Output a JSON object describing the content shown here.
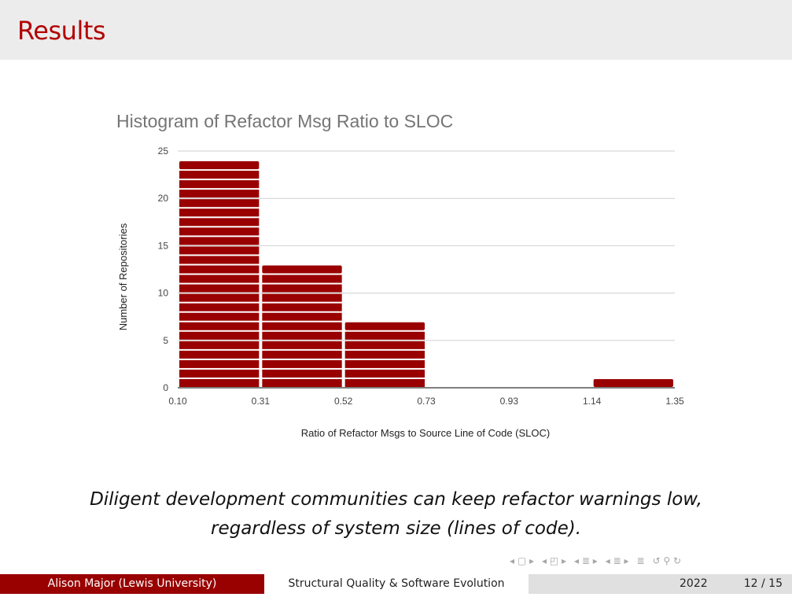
{
  "slide": {
    "title": "Results",
    "caption_line1": "Diligent development communities can keep refactor warnings low,",
    "caption_line2": "regardless of system size (lines of code)."
  },
  "footer": {
    "author": "Alison Major  (Lewis University)",
    "talk_title": "Structural Quality & Software Evolution",
    "year": "2022",
    "page": "12 / 15"
  },
  "nav": {
    "icons": [
      "nav-first-icon",
      "nav-frame-icon",
      "nav-section-icon",
      "nav-subsection-icon",
      "nav-align-icon",
      "nav-search-icon"
    ]
  },
  "colors": {
    "accent": "#b30000",
    "bar": "#990000",
    "footer_left": "#990000",
    "footer_right": "#e0e0e0"
  },
  "chart_data": {
    "type": "bar",
    "title": "Histogram of Refactor Msg Ratio to SLOC",
    "xlabel": "Ratio of Refactor Msgs to Source Line of Code (SLOC)",
    "ylabel": "Number of Repositories",
    "x_ticks": [
      "0.10",
      "0.31",
      "0.52",
      "0.73",
      "0.93",
      "1.14",
      "1.35"
    ],
    "y_ticks": [
      0,
      5,
      10,
      15,
      20,
      25
    ],
    "ylim": [
      0,
      25
    ],
    "bins": [
      {
        "from": "0.10",
        "to": "0.31",
        "value": 24
      },
      {
        "from": "0.31",
        "to": "0.52",
        "value": 13
      },
      {
        "from": "0.52",
        "to": "0.73",
        "value": 7
      },
      {
        "from": "0.73",
        "to": "0.93",
        "value": 0
      },
      {
        "from": "0.93",
        "to": "1.14",
        "value": 0
      },
      {
        "from": "1.14",
        "to": "1.35",
        "value": 1
      }
    ],
    "grid": true,
    "legend": "none"
  }
}
